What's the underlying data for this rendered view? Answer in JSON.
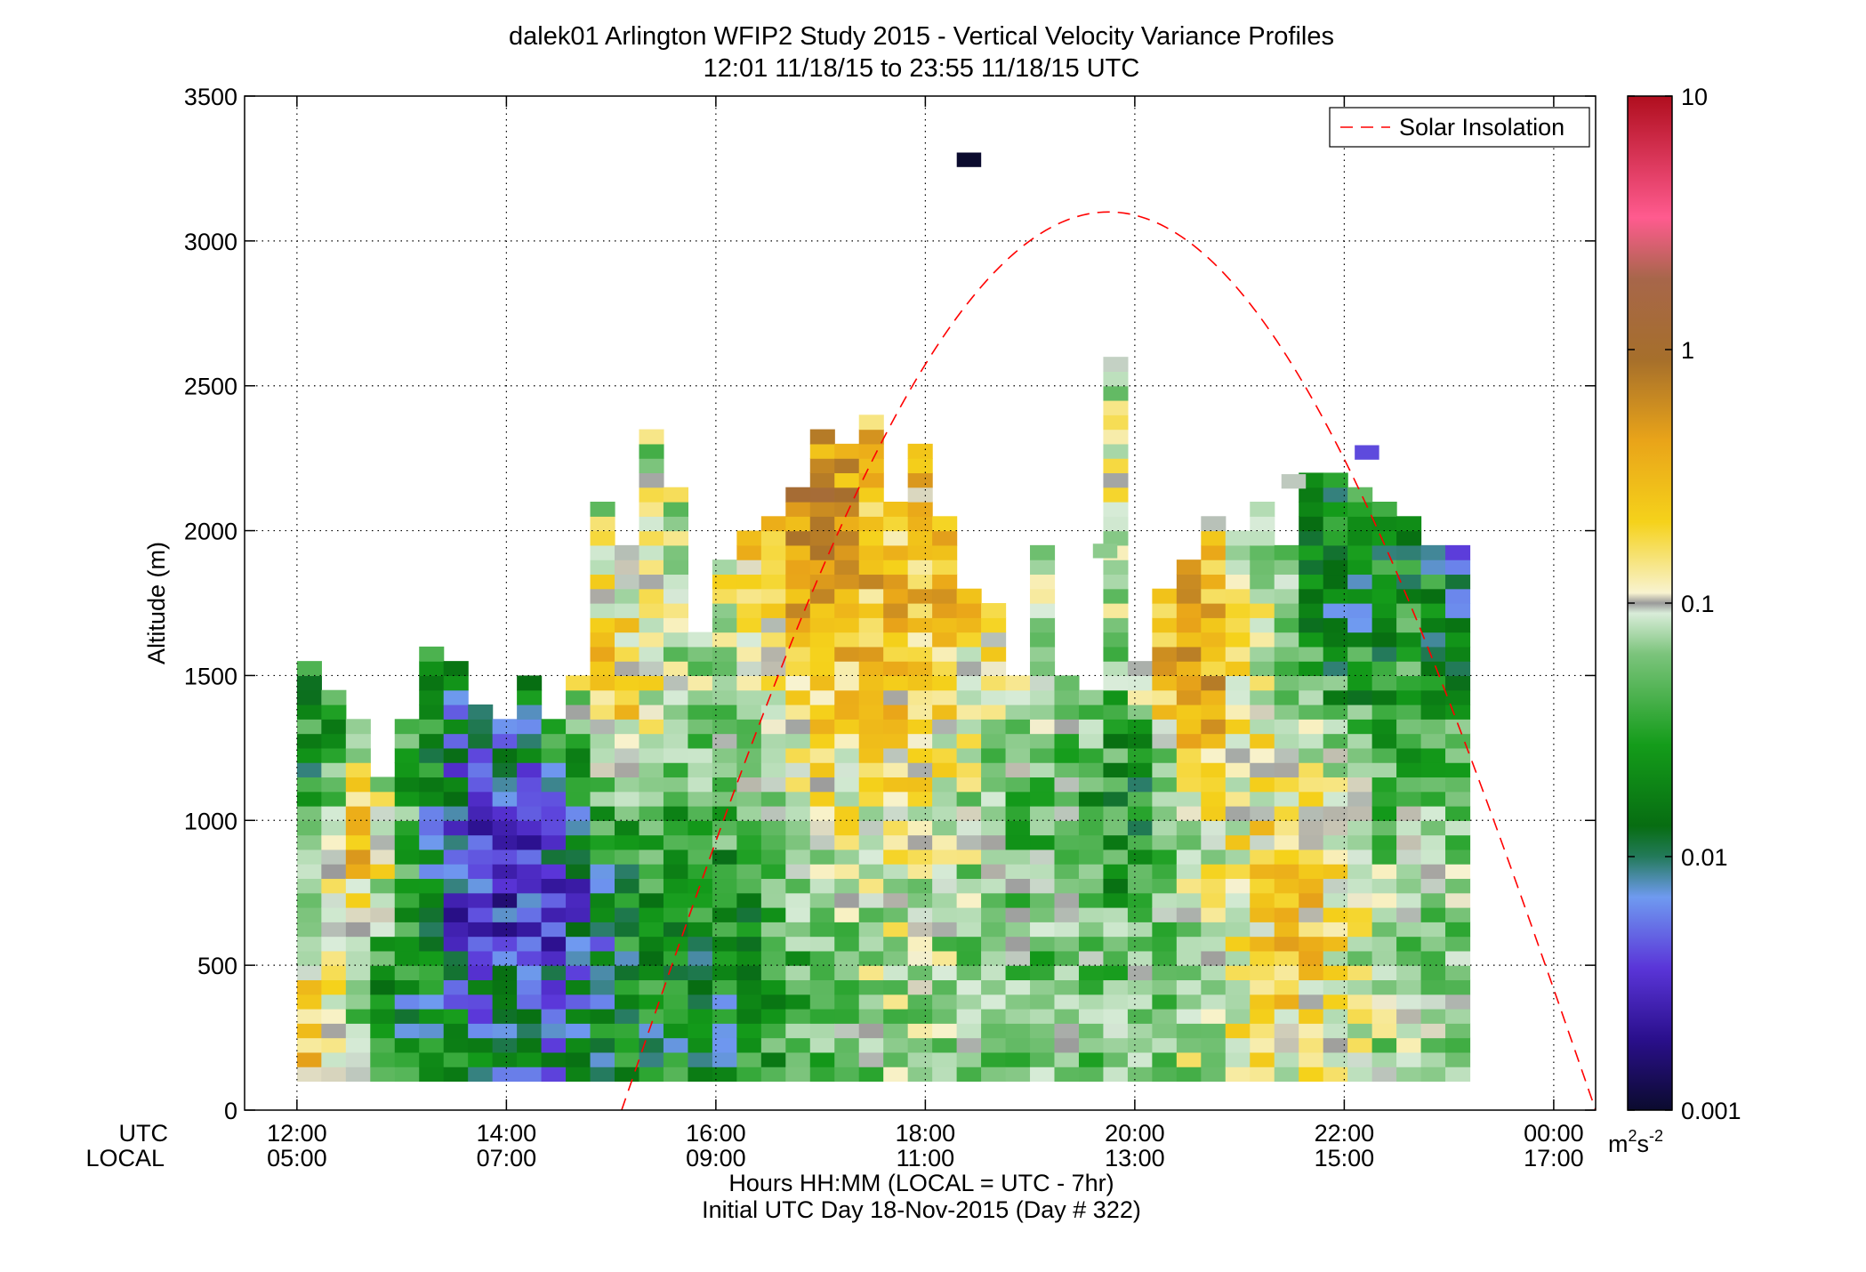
{
  "chart_data": {
    "type": "heatmap",
    "title": "dalek01 Arlington WFIP2 Study 2015 - Vertical Velocity Variance Profiles",
    "subtitle": "12:01 11/18/15 to 23:55 11/18/15  UTC",
    "ylabel": "Altitude (m)",
    "xlabel": "Hours HH:MM  (LOCAL = UTC - 7hr)",
    "xlabel2": "Initial UTC Day 18-Nov-2015 (Day # 322)",
    "xaxis_row_labels": [
      "UTC",
      "LOCAL"
    ],
    "x_range_hours_utc": [
      11.5,
      24.4
    ],
    "ylim": [
      0,
      3500
    ],
    "y_ticks": [
      0,
      500,
      1000,
      1500,
      2000,
      2500,
      3000,
      3500
    ],
    "x_ticks": [
      {
        "hour": 12,
        "utc": "12:00",
        "local": "05:00"
      },
      {
        "hour": 14,
        "utc": "14:00",
        "local": "07:00"
      },
      {
        "hour": 16,
        "utc": "16:00",
        "local": "09:00"
      },
      {
        "hour": 18,
        "utc": "18:00",
        "local": "11:00"
      },
      {
        "hour": 20,
        "utc": "20:00",
        "local": "13:00"
      },
      {
        "hour": 22,
        "utc": "22:00",
        "local": "15:00"
      },
      {
        "hour": 24,
        "utc": "00:00",
        "local": "17:00"
      }
    ],
    "grid": true,
    "legend": {
      "placement": "top-right",
      "entries": [
        "Solar Insolation"
      ]
    },
    "colorbar": {
      "scale": "log",
      "range": [
        0.001,
        10
      ],
      "ticks": [
        "0.001",
        "0.01",
        "0.1",
        "1",
        "10"
      ],
      "unit": "m",
      "unit_exp1": "2",
      "unit_mid": "s",
      "unit_exp2": "-2"
    },
    "column_width_hours": 0.2333,
    "row_height_m": 50,
    "column_top_altitudes_m": [
      1550,
      1450,
      1350,
      1150,
      1350,
      1600,
      1550,
      1400,
      1350,
      1500,
      1350,
      1500,
      2100,
      1950,
      2350,
      2150,
      1650,
      1900,
      2000,
      2050,
      2150,
      2350,
      2300,
      2400,
      2100,
      2300,
      2050,
      1800,
      1750,
      1500,
      1950,
      1500,
      1450,
      2600,
      1550,
      1800,
      1900,
      2050,
      2000,
      2100,
      1950,
      2200,
      2200,
      2150,
      2100,
      2050,
      1950,
      1950
    ],
    "variance_samples": [
      {
        "hour": 12.1,
        "altitude": 200,
        "value": 0.3
      },
      {
        "hour": 12.1,
        "altitude": 1200,
        "value": 0.015
      },
      {
        "hour": 12.6,
        "altitude": 900,
        "value": 0.35
      },
      {
        "hour": 13.0,
        "altitude": 400,
        "value": 0.012
      },
      {
        "hour": 13.6,
        "altitude": 800,
        "value": 0.003
      },
      {
        "hour": 14.0,
        "altitude": 900,
        "value": 0.0025
      },
      {
        "hour": 14.5,
        "altitude": 700,
        "value": 0.004
      },
      {
        "hour": 15.0,
        "altitude": 1500,
        "value": 0.25
      },
      {
        "hour": 16.0,
        "altitude": 400,
        "value": 0.012
      },
      {
        "hour": 17.0,
        "altitude": 2000,
        "value": 0.8
      },
      {
        "hour": 18.0,
        "altitude": 1800,
        "value": 0.3
      },
      {
        "hour": 19.0,
        "altitude": 900,
        "value": 0.04
      },
      {
        "hour": 20.0,
        "altitude": 1100,
        "value": 0.012
      },
      {
        "hour": 20.5,
        "altitude": 1500,
        "value": 0.7
      },
      {
        "hour": 21.5,
        "altitude": 700,
        "value": 0.25
      },
      {
        "hour": 22.0,
        "altitude": 1800,
        "value": 0.012
      },
      {
        "hour": 23.0,
        "altitude": 900,
        "value": 0.06
      },
      {
        "hour": 23.6,
        "altitude": 1700,
        "value": 0.002
      }
    ],
    "isolated_cells": [
      {
        "hour": 18.3,
        "altitude": 3280,
        "value": 0.001
      },
      {
        "hour": 22.1,
        "altitude": 2270,
        "value": 0.004
      },
      {
        "hour": 21.4,
        "altitude": 2170,
        "value": 0.09
      },
      {
        "hour": 19.6,
        "altitude": 1930,
        "value": 0.05
      }
    ],
    "solar_insolation_curve": {
      "peak_hour_utc": 19.75,
      "peak_altitude_scale": 3100,
      "zero_crossings_hours_utc": [
        15.1,
        24.4
      ]
    }
  }
}
